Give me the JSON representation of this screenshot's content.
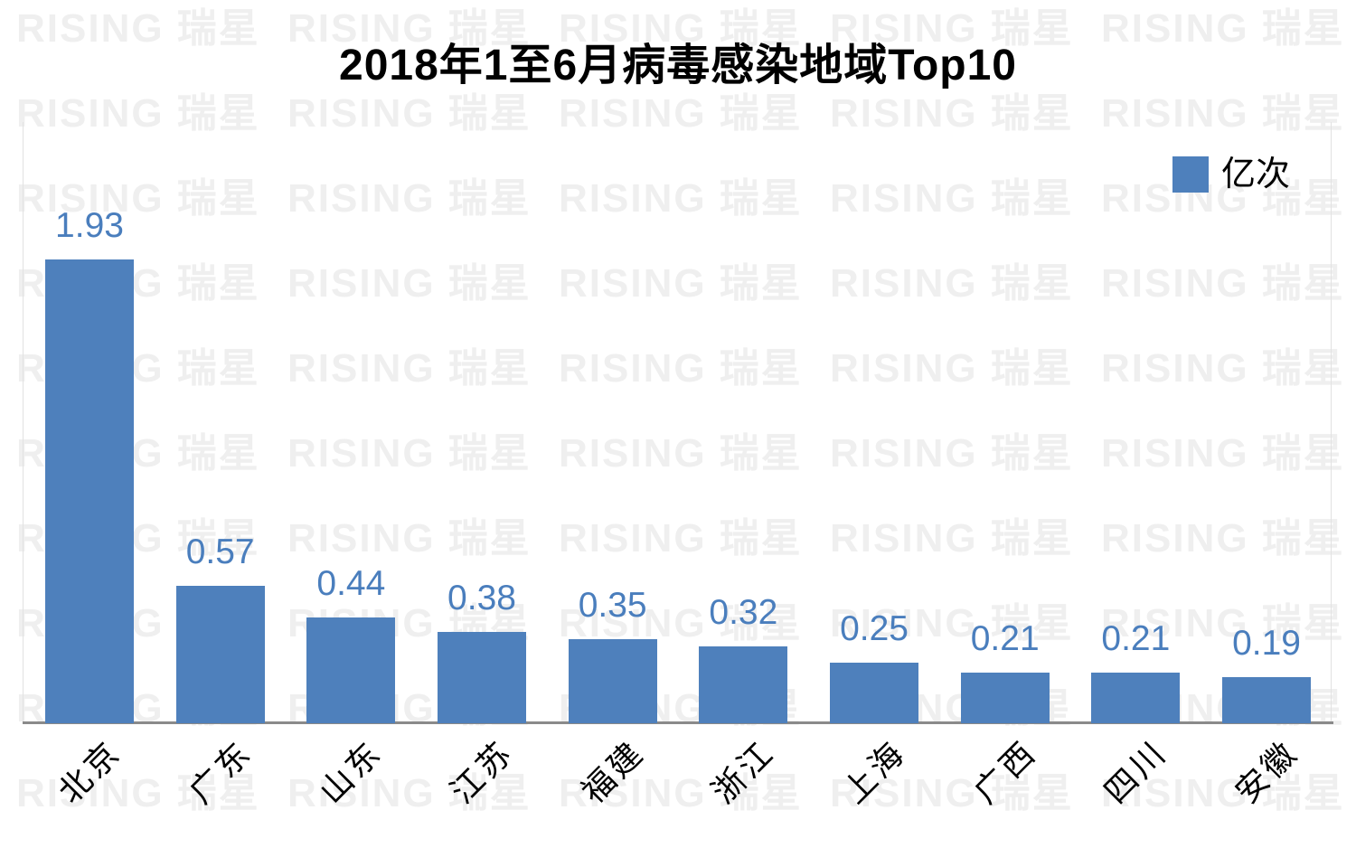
{
  "title": "2018年1至6月病毒感染地域Top10",
  "legend": {
    "label": "亿次",
    "color": "#4E80BC"
  },
  "watermark": {
    "text": "RISING 瑞星",
    "color": "#EFEFEF",
    "rows": 10,
    "cols": 5
  },
  "axis": {
    "line_color": "#8A8A8A",
    "border_color": "#E2E2E2"
  },
  "chart_data": {
    "type": "bar",
    "title": "2018年1至6月病毒感染地域Top10",
    "categories": [
      "北京",
      "广东",
      "山东",
      "江苏",
      "福建",
      "浙江",
      "上海",
      "广西",
      "四川",
      "安徽"
    ],
    "values": [
      1.93,
      0.57,
      0.44,
      0.38,
      0.35,
      0.32,
      0.25,
      0.21,
      0.21,
      0.19
    ],
    "series_name": "亿次",
    "unit": "亿次",
    "bar_color": "#4E80BC",
    "value_label_color": "#4A7EBD",
    "value_labels_shown": true,
    "value_label_decimals": 2,
    "xlabel": "",
    "ylabel": "",
    "ylim": [
      0,
      2.0
    ],
    "grid": false,
    "legend_position": "top-right",
    "x_tick_rotation": 45
  }
}
